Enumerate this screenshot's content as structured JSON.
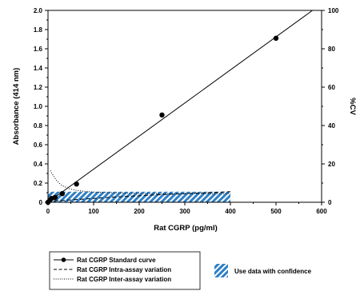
{
  "chart_data": {
    "type": "line",
    "xlabel": "Rat CGRP (pg/ml)",
    "ylabel": "Absorbance (414 nm)",
    "y2label": "%CV",
    "xlim": [
      0,
      600
    ],
    "ylim": [
      0,
      2.0
    ],
    "y2lim": [
      0,
      100
    ],
    "x_ticks": [
      0,
      100,
      200,
      300,
      400,
      500,
      600
    ],
    "y_ticks": [
      0,
      0.2,
      0.4,
      0.6,
      0.8,
      1.0,
      1.2,
      1.4,
      1.6,
      1.8,
      2.0
    ],
    "y2_ticks": [
      0,
      20,
      40,
      60,
      80,
      100
    ],
    "x_tick_labels": [
      "0",
      "100",
      "200",
      "300",
      "400",
      "500",
      "600"
    ],
    "y_tick_labels": [
      "0",
      "0.2",
      "0.4",
      "0.6",
      "0.8",
      "1.0",
      "1.2",
      "1.4",
      "1.6",
      "1.8",
      "2.0"
    ],
    "y2_tick_labels": [
      "0",
      "20",
      "40",
      "60",
      "80",
      "100"
    ],
    "grid": false,
    "legend_position": "bottom",
    "series": [
      {
        "name": "Rat CGRP Standard curve",
        "style": "solid-line-with-markers",
        "axis": "left",
        "points": [
          [
            0,
            0.0
          ],
          [
            3.9,
            0.02
          ],
          [
            7.8,
            0.04
          ],
          [
            15.6,
            0.05
          ],
          [
            31.25,
            0.09
          ],
          [
            62.5,
            0.19
          ],
          [
            250,
            0.91
          ],
          [
            500,
            1.71
          ]
        ],
        "fit_line": [
          [
            0,
            0.0
          ],
          [
            580,
            2.0
          ]
        ]
      },
      {
        "name": "Rat CGRP Intra-assay variation",
        "style": "dashed-line",
        "axis": "right",
        "points": [
          [
            0,
            0.5
          ],
          [
            50,
            1.2
          ],
          [
            100,
            2.0
          ],
          [
            150,
            2.8
          ],
          [
            200,
            3.4
          ],
          [
            250,
            4.0
          ],
          [
            300,
            4.5
          ],
          [
            350,
            5.0
          ],
          [
            400,
            5.5
          ]
        ]
      },
      {
        "name": "Rat CGRP Inter-assay variation",
        "style": "dotted-line",
        "axis": "right",
        "points": [
          [
            5,
            16.5
          ],
          [
            10,
            14.5
          ],
          [
            20,
            11.0
          ],
          [
            30,
            8.8
          ],
          [
            45,
            7.2
          ],
          [
            60,
            6.3
          ],
          [
            80,
            5.7
          ],
          [
            100,
            5.3
          ],
          [
            150,
            4.9
          ],
          [
            200,
            4.6
          ],
          [
            250,
            4.5
          ],
          [
            300,
            4.5
          ],
          [
            350,
            4.5
          ],
          [
            400,
            4.5
          ]
        ]
      }
    ],
    "confidence_region": {
      "name": "Use data with confidence",
      "x_range": [
        0,
        400
      ],
      "y2_range": [
        0,
        5.5
      ],
      "color": "#2f7fc4",
      "pattern": "diagonal-hatch"
    }
  }
}
